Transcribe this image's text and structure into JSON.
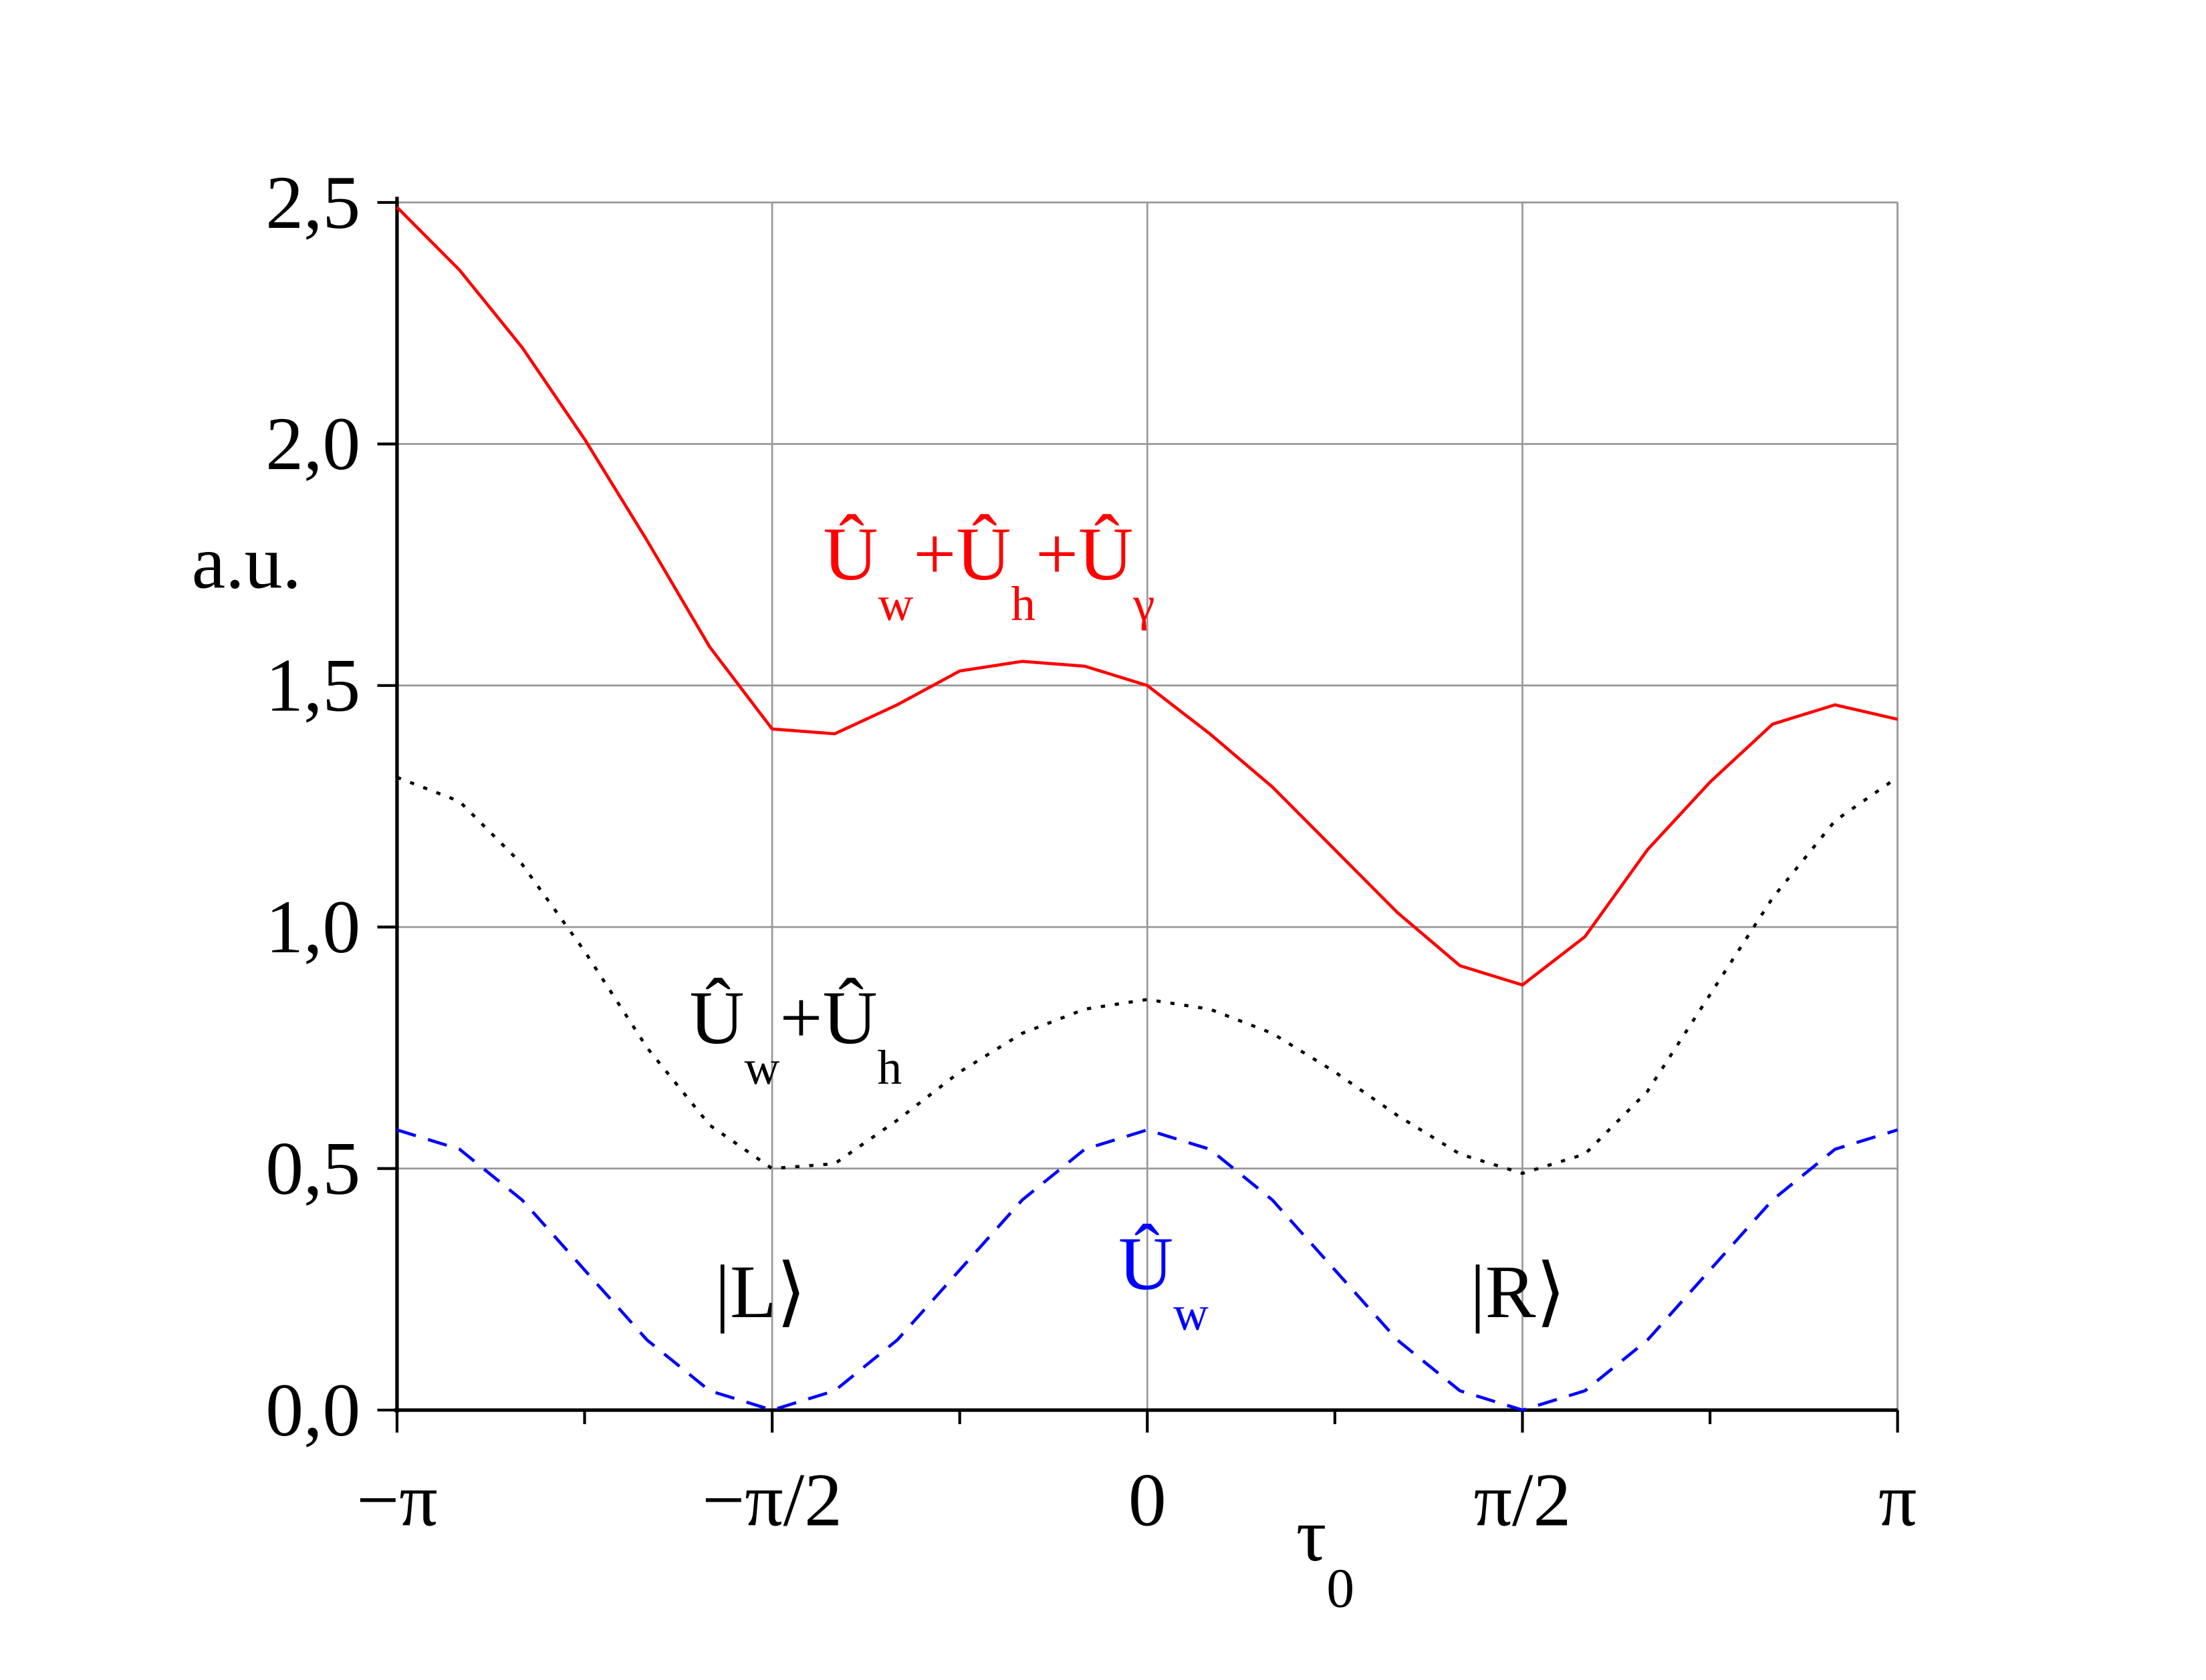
{
  "chart_data": {
    "type": "line",
    "y_label": "a.u.",
    "x_label": "τ0",
    "x": [
      -3.1416,
      -2.8798,
      -2.618,
      -2.3562,
      -2.0944,
      -1.8326,
      -1.5708,
      -1.309,
      -1.0472,
      -0.7854,
      -0.5236,
      -0.2618,
      0,
      0.2618,
      0.5236,
      0.7854,
      1.0472,
      1.309,
      1.5708,
      1.8326,
      2.0944,
      2.3562,
      2.618,
      2.8798,
      3.1416
    ],
    "series": [
      {
        "name": "Ûw+Ûh+Ûγ",
        "color": "#ff0000",
        "dash": "solid",
        "values": [
          2.49,
          2.36,
          2.2,
          2.01,
          1.8,
          1.58,
          1.41,
          1.4,
          1.46,
          1.53,
          1.55,
          1.54,
          1.5,
          1.4,
          1.29,
          1.16,
          1.03,
          0.92,
          0.88,
          0.98,
          1.16,
          1.3,
          1.42,
          1.46,
          1.43
        ]
      },
      {
        "name": "Ûw+Ûh",
        "color": "#000000",
        "dash": "dotted",
        "values": [
          1.31,
          1.26,
          1.13,
          0.95,
          0.75,
          0.59,
          0.5,
          0.51,
          0.6,
          0.7,
          0.78,
          0.83,
          0.85,
          0.83,
          0.78,
          0.7,
          0.61,
          0.53,
          0.49,
          0.53,
          0.66,
          0.86,
          1.06,
          1.22,
          1.31
        ]
      },
      {
        "name": "Ûw",
        "color": "#0000ff",
        "dash": "dashed",
        "values": [
          0.58,
          0.54,
          0.435,
          0.29,
          0.145,
          0.04,
          0.0,
          0.04,
          0.145,
          0.29,
          0.435,
          0.54,
          0.58,
          0.54,
          0.435,
          0.29,
          0.145,
          0.04,
          0.0,
          0.04,
          0.145,
          0.29,
          0.435,
          0.54,
          0.58
        ]
      }
    ],
    "annotations": [
      "|L⟩",
      "|R⟩"
    ],
    "xlim": [
      -3.1416,
      3.1416
    ],
    "ylim": [
      0,
      2.5
    ],
    "xticks": [
      {
        "value": -3.1416,
        "label": "−π"
      },
      {
        "value": -1.5708,
        "label": "−π/2"
      },
      {
        "value": 0,
        "label": "0"
      },
      {
        "value": 1.5708,
        "label": "π/2"
      },
      {
        "value": 3.1416,
        "label": "π"
      }
    ],
    "minor_xticks": [
      -2.3562,
      -0.7854,
      0.7854,
      2.3562
    ],
    "yticks": [
      {
        "value": 0,
        "label": "0,0"
      },
      {
        "value": 0.5,
        "label": "0,5"
      },
      {
        "value": 1.0,
        "label": "1,0"
      },
      {
        "value": 1.5,
        "label": "1,5"
      },
      {
        "value": 2.0,
        "label": "2,0"
      },
      {
        "value": 2.5,
        "label": "2,5"
      }
    ],
    "grid": true
  }
}
